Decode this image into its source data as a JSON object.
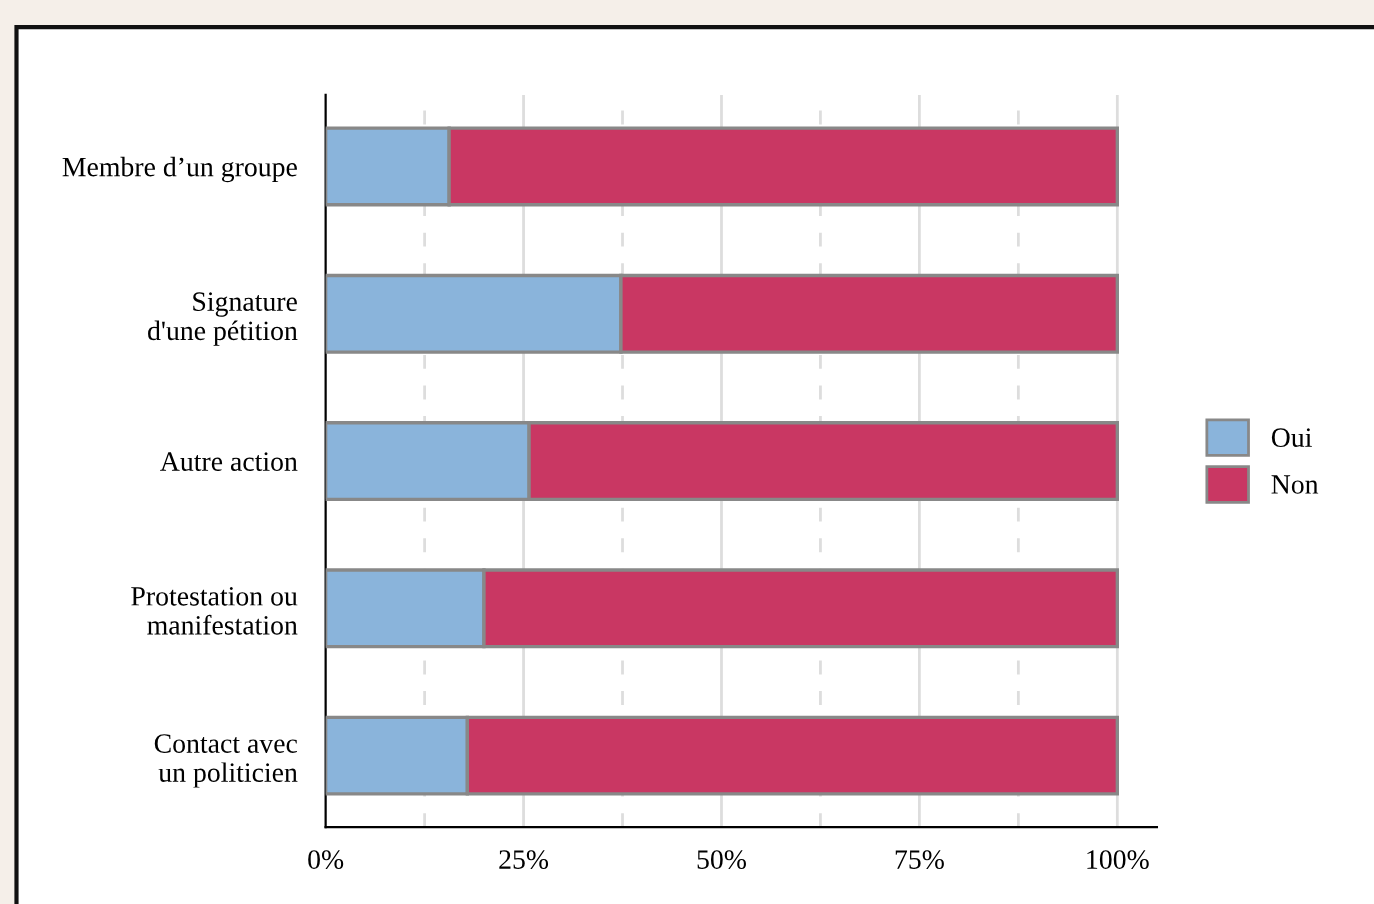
{
  "chart_data": {
    "type": "bar",
    "orientation": "horizontal",
    "stacked": true,
    "categories": [
      "Membre d’un groupe",
      "Signature\nd'une pétition",
      "Autre action",
      "Protestation ou\nmanifestation",
      "Contact avec\nun politicien"
    ],
    "series": [
      {
        "name": "Oui",
        "color": "#8ab4db",
        "values": [
          15.6,
          37.3,
          25.7,
          20,
          17.9
        ]
      },
      {
        "name": "Non",
        "color": "#c93763",
        "values": [
          84.4,
          62.7,
          74.3,
          80,
          82.1
        ]
      }
    ],
    "xlim": [
      0,
      105
    ],
    "xticks": [
      {
        "value": 0,
        "label": "0%"
      },
      {
        "value": 12.5,
        "label": null
      },
      {
        "value": 25,
        "label": "25%"
      },
      {
        "value": 37.5,
        "label": null
      },
      {
        "value": 50,
        "label": "50%"
      },
      {
        "value": 62.5,
        "label": null
      },
      {
        "value": 75,
        "label": "75%"
      },
      {
        "value": 87.5,
        "label": null
      },
      {
        "value": 100,
        "label": "100%"
      }
    ],
    "grid": "x",
    "legend": "right"
  }
}
